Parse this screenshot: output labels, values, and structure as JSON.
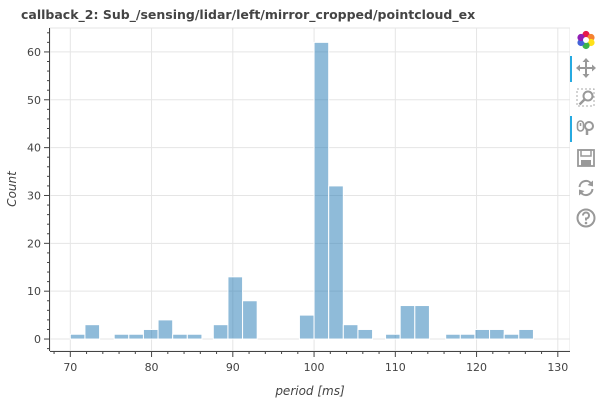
{
  "title": "callback_2: Sub_/sensing/lidar/left/mirror_cropped/pointcloud_ex",
  "chart_data": {
    "type": "bar",
    "title": "callback_2: Sub_/sensing/lidar/left/mirror_cropped/pointcloud_ex",
    "xlabel": "period [ms]",
    "ylabel": "Count",
    "xlim": [
      67.5,
      131.5
    ],
    "ylim": [
      -2.5,
      65
    ],
    "xticks": [
      70,
      80,
      90,
      100,
      110,
      120,
      130
    ],
    "yticks": [
      0,
      10,
      20,
      30,
      40,
      50,
      60
    ],
    "grid": true,
    "bar_color": "#1f77b4",
    "bins": [
      {
        "x0": 70.0,
        "x1": 71.8,
        "count": 1
      },
      {
        "x0": 71.8,
        "x1": 73.6,
        "count": 3
      },
      {
        "x0": 75.4,
        "x1": 77.2,
        "count": 1
      },
      {
        "x0": 77.2,
        "x1": 79.0,
        "count": 1
      },
      {
        "x0": 79.0,
        "x1": 80.8,
        "count": 2
      },
      {
        "x0": 80.8,
        "x1": 82.6,
        "count": 4
      },
      {
        "x0": 82.6,
        "x1": 84.4,
        "count": 1
      },
      {
        "x0": 84.4,
        "x1": 86.2,
        "count": 1
      },
      {
        "x0": 87.6,
        "x1": 89.4,
        "count": 3
      },
      {
        "x0": 89.4,
        "x1": 91.2,
        "count": 13
      },
      {
        "x0": 91.2,
        "x1": 93.0,
        "count": 8
      },
      {
        "x0": 98.2,
        "x1": 100.0,
        "count": 5
      },
      {
        "x0": 100.0,
        "x1": 101.8,
        "count": 62
      },
      {
        "x0": 101.8,
        "x1": 103.6,
        "count": 32
      },
      {
        "x0": 103.6,
        "x1": 105.4,
        "count": 3
      },
      {
        "x0": 105.4,
        "x1": 107.2,
        "count": 2
      },
      {
        "x0": 108.8,
        "x1": 110.6,
        "count": 1
      },
      {
        "x0": 110.6,
        "x1": 112.4,
        "count": 7
      },
      {
        "x0": 112.4,
        "x1": 114.2,
        "count": 7
      },
      {
        "x0": 116.2,
        "x1": 118.0,
        "count": 1
      },
      {
        "x0": 118.0,
        "x1": 119.8,
        "count": 1
      },
      {
        "x0": 119.8,
        "x1": 121.6,
        "count": 2
      },
      {
        "x0": 121.6,
        "x1": 123.4,
        "count": 2
      },
      {
        "x0": 123.4,
        "x1": 125.2,
        "count": 1
      },
      {
        "x0": 125.2,
        "x1": 127.0,
        "count": 2
      }
    ]
  },
  "toolbar": {
    "tools": [
      {
        "name": "bokeh-logo",
        "icon": "bokeh-logo-icon",
        "active": false
      },
      {
        "name": "pan-tool",
        "icon": "pan-icon",
        "active": true
      },
      {
        "name": "box-zoom-tool",
        "icon": "box-zoom-icon",
        "active": false
      },
      {
        "name": "wheel-zoom-tool",
        "icon": "wheel-zoom-icon",
        "active": true
      },
      {
        "name": "save-tool",
        "icon": "save-icon",
        "active": false
      },
      {
        "name": "reset-tool",
        "icon": "reset-icon",
        "active": false
      },
      {
        "name": "help-tool",
        "icon": "help-icon",
        "active": false
      }
    ]
  }
}
